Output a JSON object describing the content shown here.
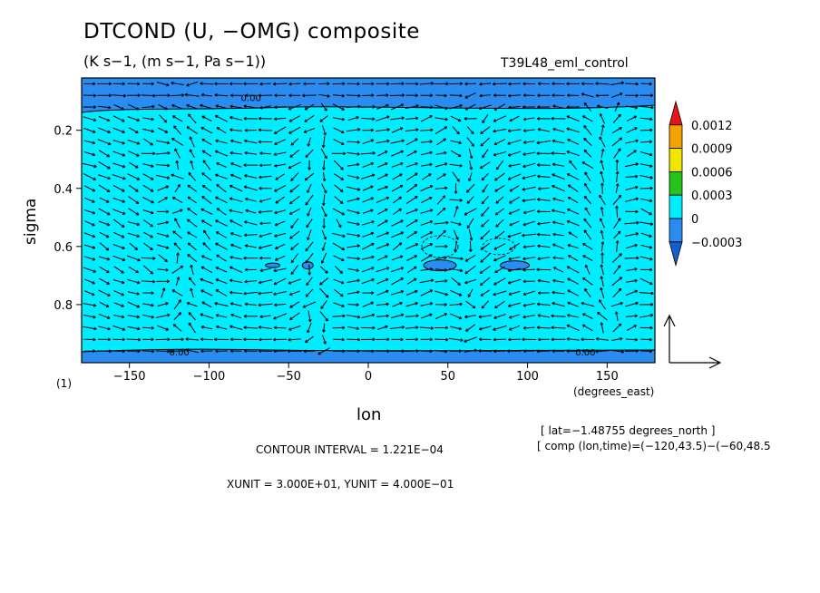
{
  "chart_data": {
    "type": "heatmap",
    "title": "DTCOND (U, −OMG) composite",
    "subtitle": "(K s−1, (m s−1, Pa s−1))",
    "run_name": "T39L48_eml_control",
    "xlabel": "lon",
    "x_units": "(degrees_east)",
    "ylabel": "sigma",
    "xlim": [
      -180,
      180
    ],
    "ylim": [
      1.0,
      0.0
    ],
    "x_ticks": [
      "−150",
      "−100",
      "−50",
      "0",
      "50",
      "100",
      "150"
    ],
    "x_tick_values": [
      -150,
      -100,
      -50,
      0,
      50,
      100,
      150
    ],
    "y_ticks": [
      "0.2",
      "0.4",
      "0.6",
      "0.8"
    ],
    "y_tick_values": [
      0.2,
      0.4,
      0.6,
      0.8
    ],
    "colorbar": {
      "labels": [
        "0.0012",
        "0.0009",
        "0.0006",
        "0.0003",
        "0",
        "−0.0003"
      ],
      "colors": [
        "#e8141c",
        "#f5a300",
        "#f0e600",
        "#24c41c",
        "#00ecff",
        "#2a8cf0",
        "#1060d0"
      ]
    },
    "background_color": "#00ecff",
    "negative_color": "#2a8cf0",
    "contour_labels": [
      "0.00",
      "0.00",
      "0.00"
    ],
    "panel_label": "(1)",
    "lat_info": "[ lat=−1.48755 degrees_north ]",
    "comp_info": "[ comp (lon,time)=(−120,43.5)−(−60,48.5",
    "contour_interval": "CONTOUR INTERVAL = 1.221E−04",
    "vector_units": "XUNIT = 3.000E+01, YUNIT = 4.000E−01"
  }
}
